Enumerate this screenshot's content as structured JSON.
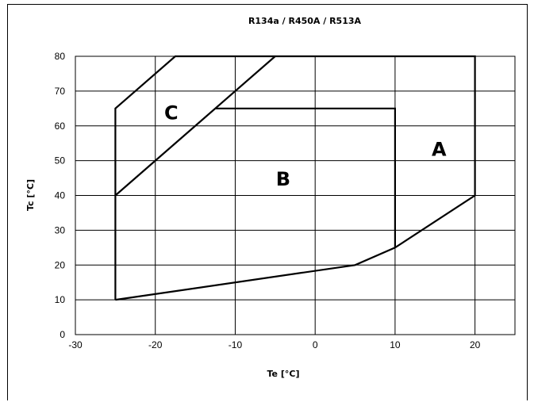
{
  "chart_data": {
    "type": "line",
    "title": "R134a / R450A / R513A",
    "xlabel": "Te [°C]",
    "ylabel": "Tc [°C]",
    "xlim": [
      -30,
      25
    ],
    "ylim": [
      0,
      80
    ],
    "xticks": [
      -30,
      -20,
      -10,
      0,
      10,
      20
    ],
    "yticks": [
      0,
      10,
      20,
      30,
      40,
      50,
      60,
      70,
      80
    ],
    "grid": true,
    "series": [
      {
        "points": [
          [
            -25,
            10
          ],
          [
            5,
            20
          ],
          [
            10,
            25
          ],
          [
            20,
            40
          ],
          [
            20,
            80
          ],
          [
            -17.5,
            80
          ],
          [
            -25,
            65
          ],
          [
            -25,
            10
          ]
        ]
      },
      {
        "points": [
          [
            -25,
            40
          ],
          [
            -5,
            80
          ]
        ]
      },
      {
        "points": [
          [
            -12.5,
            65
          ],
          [
            10,
            65
          ],
          [
            10,
            25
          ]
        ]
      }
    ],
    "annotations": [
      {
        "text": "A",
        "x": 15.5,
        "y": 53
      },
      {
        "text": "B",
        "x": -4,
        "y": 44.5
      },
      {
        "text": "C",
        "x": -18,
        "y": 63.5
      }
    ]
  }
}
